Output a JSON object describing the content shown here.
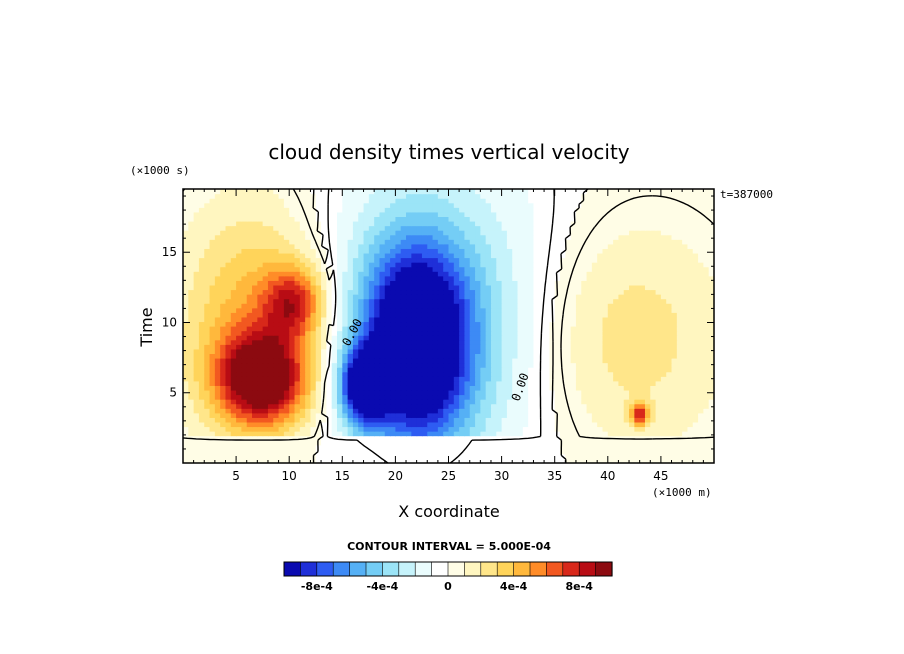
{
  "chart_data": {
    "type": "heatmap",
    "title": "cloud density times vertical velocity",
    "xlabel": "X coordinate",
    "ylabel": "Time",
    "x_unit_label": "(×1000 m)",
    "y_unit_label": "(×1000 s)",
    "time_stamp": "t=387000",
    "xlim": [
      0,
      50
    ],
    "ylim": [
      0,
      19.5
    ],
    "xticks": [
      5,
      10,
      15,
      20,
      25,
      30,
      35,
      40,
      45
    ],
    "xtick_labels": [
      "5",
      "10",
      "15",
      "20",
      "25",
      "30",
      "35",
      "40",
      "45"
    ],
    "yticks": [
      5,
      10,
      15
    ],
    "ytick_labels": [
      "5",
      "10",
      "15"
    ],
    "contour_interval_text": "CONTOUR INTERVAL = 5.000E-04",
    "contour_label_text": "0.00",
    "colorbar": {
      "levels": [
        -0.001,
        -0.0009,
        -0.0008,
        -0.0007,
        -0.0006,
        -0.0005,
        -0.0004,
        -0.0003,
        -0.0002,
        -0.0001,
        0,
        0.0001,
        0.0002,
        0.0003,
        0.0004,
        0.0005,
        0.0006,
        0.0007,
        0.0008,
        0.0009,
        0.001
      ],
      "colors": [
        "#0a0ab0",
        "#1f2fd8",
        "#2e5cf2",
        "#3d8af5",
        "#55b0f5",
        "#74cdf5",
        "#9be4f7",
        "#c6f3fb",
        "#eafcfd",
        "#ffffff",
        "#fffde6",
        "#fff6c0",
        "#ffe68a",
        "#ffd45a",
        "#ffb83c",
        "#ff8c28",
        "#f25820",
        "#d8281a",
        "#b80c14",
        "#8c0a10"
      ],
      "tick_values": [
        -0.0008,
        -0.0004,
        0,
        0.0004,
        0.0008
      ],
      "tick_labels": [
        "-8e-4",
        "-4e-4",
        "0",
        "4e-4",
        "8e-4"
      ]
    },
    "features": [
      {
        "name": "positive core",
        "x": 7.5,
        "y": 6.0,
        "peak": 0.00095,
        "sx": 3.0,
        "sy": 2.3
      },
      {
        "name": "positive upper extension",
        "x": 10.5,
        "y": 11.5,
        "peak": 0.0006,
        "sx": 2.0,
        "sy": 1.8
      },
      {
        "name": "positive broad region",
        "x": 7.0,
        "y": 10.0,
        "peak": 0.0005,
        "sx": 5.0,
        "sy": 6.0
      },
      {
        "name": "negative main core",
        "x": 22.0,
        "y": 8.5,
        "peak": -0.00115,
        "sx": 3.5,
        "sy": 4.8
      },
      {
        "name": "negative secondary core",
        "x": 17.0,
        "y": 5.5,
        "peak": -0.001,
        "sx": 1.5,
        "sy": 1.8
      },
      {
        "name": "negative broad region",
        "x": 24.0,
        "y": 10.0,
        "peak": -0.0004,
        "sx": 9.0,
        "sy": 8.0
      },
      {
        "name": "weak positive east",
        "x": 41.0,
        "y": 9.0,
        "peak": 0.0003,
        "sx": 7.0,
        "sy": 6.0
      },
      {
        "name": "positive spot east",
        "x": 43.0,
        "y": 3.5,
        "peak": 0.00065,
        "sx": 0.6,
        "sy": 0.6
      }
    ]
  }
}
